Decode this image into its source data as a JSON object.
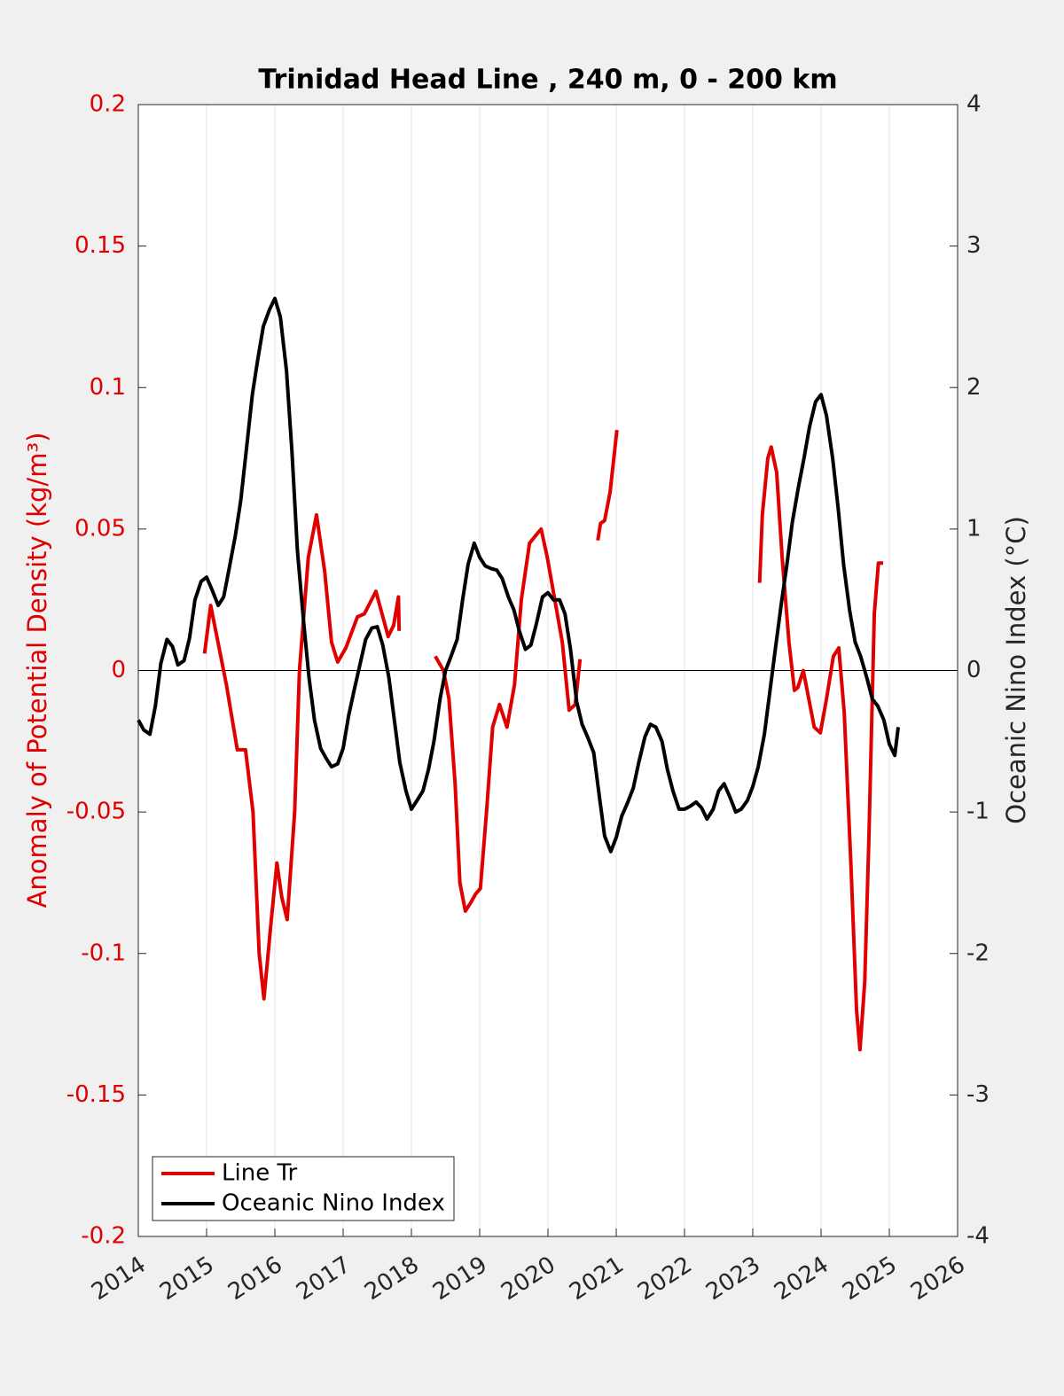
{
  "chart_data": {
    "type": "line",
    "title": "Trinidad Head Line , 240 m, 0 - 200 km",
    "ylabel": "Anomaly of Potential Density (kg/m³)",
    "y2label": "Oceanic Nino Index (°C)",
    "xlim": [
      2014,
      2026
    ],
    "xticks": [
      2014,
      2015,
      2016,
      2017,
      2018,
      2019,
      2020,
      2021,
      2022,
      2023,
      2024,
      2025,
      2026
    ],
    "ylim": [
      -0.2,
      0.2
    ],
    "yticks": [
      -0.2,
      -0.15,
      -0.1,
      -0.05,
      0,
      0.05,
      0.1,
      0.15,
      0.2
    ],
    "y2lim": [
      -4,
      4
    ],
    "y2ticks": [
      -4,
      -3,
      -2,
      -1,
      0,
      1,
      2,
      3,
      4
    ],
    "grid": "x",
    "legend": "lower left",
    "ylabel_color": "#e00000",
    "series": [
      {
        "name": "Line Tr",
        "color": "#e00000",
        "x": [
          2014.97,
          2015.06,
          2015.29,
          2015.45,
          2015.57,
          2015.68,
          2015.77,
          2015.84,
          2015.94,
          2016.03,
          2016.1,
          2016.18,
          2016.29,
          2016.36,
          2016.49,
          2016.61,
          2016.73,
          2016.83,
          2016.92,
          2017.04,
          2017.21,
          2017.31,
          2017.48,
          2017.57,
          2017.66,
          2017.74,
          2017.81,
          2017.82,
          2018.1,
          2018.35,
          2018.47,
          2018.55,
          2018.64,
          2018.71,
          2018.79,
          2018.87,
          2018.94,
          2019.01,
          2019.1,
          2019.19,
          2019.29,
          2019.4,
          2019.51,
          2019.61,
          2019.73,
          2019.83,
          2019.9,
          2019.99,
          2020.1,
          2020.21,
          2020.31,
          2020.4,
          2020.47,
          2020.6,
          2020.73,
          2020.77,
          2020.83,
          2020.91,
          2021.01,
          2022.0,
          2023.1,
          2023.14,
          2023.22,
          2023.27,
          2023.35,
          2023.43,
          2023.53,
          2023.61,
          2023.66,
          2023.74,
          2023.82,
          2023.9,
          2023.99,
          2024.08,
          2024.18,
          2024.26,
          2024.34,
          2024.44,
          2024.52,
          2024.57,
          2024.64,
          2024.7,
          2024.78,
          2024.84,
          2024.91
        ],
        "values": [
          0.006,
          0.023,
          -0.005,
          -0.028,
          -0.028,
          -0.05,
          -0.1,
          -0.116,
          -0.09,
          -0.068,
          -0.08,
          -0.088,
          -0.05,
          0,
          0.04,
          0.055,
          0.035,
          0.01,
          0.003,
          0.008,
          0.019,
          0.02,
          0.028,
          0.02,
          0.012,
          0.016,
          0.026,
          0.014,
          null,
          0.005,
          0,
          -0.01,
          -0.04,
          -0.075,
          -0.085,
          -0.082,
          -0.079,
          -0.077,
          -0.05,
          -0.02,
          -0.012,
          -0.02,
          -0.005,
          0.025,
          0.045,
          0.048,
          0.05,
          0.04,
          0.025,
          0.01,
          -0.014,
          -0.012,
          0.004,
          null,
          0.046,
          0.052,
          0.053,
          0.063,
          0.085,
          null,
          0.031,
          0.055,
          0.075,
          0.079,
          0.07,
          0.04,
          0.01,
          -0.007,
          -0.006,
          0,
          -0.01,
          -0.02,
          -0.022,
          -0.01,
          0.005,
          0.008,
          -0.015,
          -0.07,
          -0.12,
          -0.134,
          -0.11,
          -0.06,
          0.02,
          0.038,
          0.038
        ]
      },
      {
        "name": "Oceanic Nino Index",
        "color": "#000000",
        "axis": "y2",
        "x": [
          2014.0,
          2014.08,
          2014.17,
          2014.25,
          2014.33,
          2014.42,
          2014.5,
          2014.58,
          2014.67,
          2014.75,
          2014.83,
          2014.92,
          2015.0,
          2015.08,
          2015.17,
          2015.25,
          2015.33,
          2015.42,
          2015.5,
          2015.58,
          2015.67,
          2015.75,
          2015.83,
          2015.92,
          2016.0,
          2016.08,
          2016.17,
          2016.25,
          2016.33,
          2016.42,
          2016.5,
          2016.58,
          2016.67,
          2016.75,
          2016.83,
          2016.92,
          2017.0,
          2017.08,
          2017.17,
          2017.25,
          2017.33,
          2017.42,
          2017.5,
          2017.58,
          2017.67,
          2017.75,
          2017.83,
          2017.92,
          2018.0,
          2018.08,
          2018.17,
          2018.25,
          2018.33,
          2018.42,
          2018.5,
          2018.58,
          2018.67,
          2018.75,
          2018.83,
          2018.92,
          2019.0,
          2019.08,
          2019.17,
          2019.25,
          2019.33,
          2019.42,
          2019.5,
          2019.58,
          2019.67,
          2019.75,
          2019.83,
          2019.92,
          2020.0,
          2020.08,
          2020.17,
          2020.25,
          2020.33,
          2020.42,
          2020.5,
          2020.58,
          2020.67,
          2020.75,
          2020.83,
          2020.92,
          2021.0,
          2021.08,
          2021.17,
          2021.25,
          2021.33,
          2021.42,
          2021.5,
          2021.58,
          2021.67,
          2021.75,
          2021.83,
          2021.92,
          2022.0,
          2022.08,
          2022.17,
          2022.25,
          2022.33,
          2022.42,
          2022.5,
          2022.58,
          2022.67,
          2022.75,
          2022.83,
          2022.92,
          2023.0,
          2023.08,
          2023.17,
          2023.25,
          2023.33,
          2023.42,
          2023.5,
          2023.58,
          2023.67,
          2023.75,
          2023.83,
          2023.92,
          2024.0,
          2024.08,
          2024.17,
          2024.25,
          2024.33,
          2024.42,
          2024.5,
          2024.58,
          2024.67,
          2024.75,
          2024.83,
          2024.92,
          2025.0,
          2025.08,
          2025.13
        ],
        "values": [
          -0.35,
          -0.42,
          -0.45,
          -0.25,
          0.05,
          0.22,
          0.17,
          0.04,
          0.07,
          0.23,
          0.5,
          0.63,
          0.66,
          0.57,
          0.46,
          0.52,
          0.72,
          0.95,
          1.2,
          1.55,
          1.95,
          2.2,
          2.43,
          2.55,
          2.63,
          2.5,
          2.12,
          1.55,
          0.85,
          0.35,
          -0.05,
          -0.35,
          -0.55,
          -0.62,
          -0.68,
          -0.66,
          -0.55,
          -0.32,
          -0.12,
          0.05,
          0.22,
          0.3,
          0.31,
          0.18,
          -0.05,
          -0.35,
          -0.65,
          -0.85,
          -0.98,
          -0.92,
          -0.85,
          -0.7,
          -0.5,
          -0.2,
          0,
          0.1,
          0.22,
          0.5,
          0.75,
          0.9,
          0.8,
          0.74,
          0.72,
          0.71,
          0.65,
          0.52,
          0.43,
          0.28,
          0.15,
          0.18,
          0.33,
          0.52,
          0.55,
          0.5,
          0.5,
          0.4,
          0.15,
          -0.22,
          -0.38,
          -0.47,
          -0.58,
          -0.88,
          -1.17,
          -1.28,
          -1.18,
          -1.03,
          -0.93,
          -0.83,
          -0.65,
          -0.47,
          -0.38,
          -0.4,
          -0.5,
          -0.7,
          -0.85,
          -0.98,
          -0.98,
          -0.96,
          -0.93,
          -0.97,
          -1.05,
          -0.98,
          -0.85,
          -0.8,
          -0.9,
          -1,
          -0.98,
          -0.92,
          -0.82,
          -0.68,
          -0.45,
          -0.15,
          0.15,
          0.48,
          0.75,
          1.05,
          1.3,
          1.5,
          1.72,
          1.9,
          1.95,
          1.8,
          1.5,
          1.15,
          0.75,
          0.42,
          0.2,
          0.1,
          -0.05,
          -0.2,
          -0.25,
          -0.35,
          -0.52,
          -0.6,
          -0.4
        ]
      }
    ]
  }
}
